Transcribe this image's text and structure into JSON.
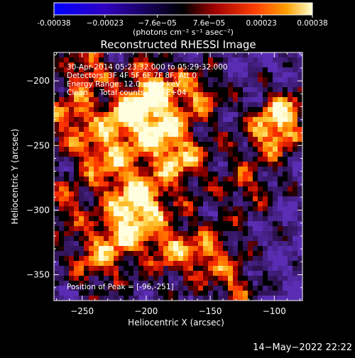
{
  "chart_data": {
    "type": "heatmap",
    "title": "Reconstructed RHESSI Image",
    "xlabel": "Heliocentric X (arcsec)",
    "ylabel": "Heliocentric Y (arcsec)",
    "xlim": [
      -272,
      -78
    ],
    "ylim": [
      -370,
      -178
    ],
    "x_ticks": [
      {
        "value": -250,
        "label": "−250"
      },
      {
        "value": -200,
        "label": "−200"
      },
      {
        "value": -150,
        "label": "−150"
      },
      {
        "value": -100,
        "label": "−100"
      }
    ],
    "y_ticks": [
      {
        "value": -200,
        "label": "−200"
      },
      {
        "value": -250,
        "label": "−250"
      },
      {
        "value": -300,
        "label": "−300"
      },
      {
        "value": -350,
        "label": "−350"
      }
    ],
    "annotations": [
      "30-Apr-2014 05:23:32.000 to 05:29:32.000",
      "Detectors: 3F 4F 5F 6F 7F 8F, Att 0",
      "Energy Range: 12.0 - 25.0 keV",
      "Clean     Total counts: 1.17E+04"
    ],
    "peak_label": "Position of Peak = [-96,-251]",
    "colorbar": {
      "min": -0.00038,
      "max": 0.00038,
      "ticks": [
        {
          "value": -0.00038,
          "label": "-0.00038"
        },
        {
          "value": -0.00023,
          "label": "−0.00023"
        },
        {
          "value": -7.6e-05,
          "label": "−7.6e−05"
        },
        {
          "value": 7.6e-05,
          "label": "7.6e−05"
        },
        {
          "value": 0.00023,
          "label": "0.00023"
        },
        {
          "value": 0.00038,
          "label": "0.00038"
        }
      ],
      "unit_label": "(photons cm⁻² s⁻¹ asec⁻²)"
    },
    "colors": {
      "negative": "#5028a0",
      "neutral": "#000000",
      "hot": [
        "#200000",
        "#a00000",
        "#ff3000",
        "#ff9000",
        "#ffd040",
        "#ffffe0"
      ]
    }
  },
  "footer": {
    "timestamp": "14−May−2022 22:22"
  }
}
